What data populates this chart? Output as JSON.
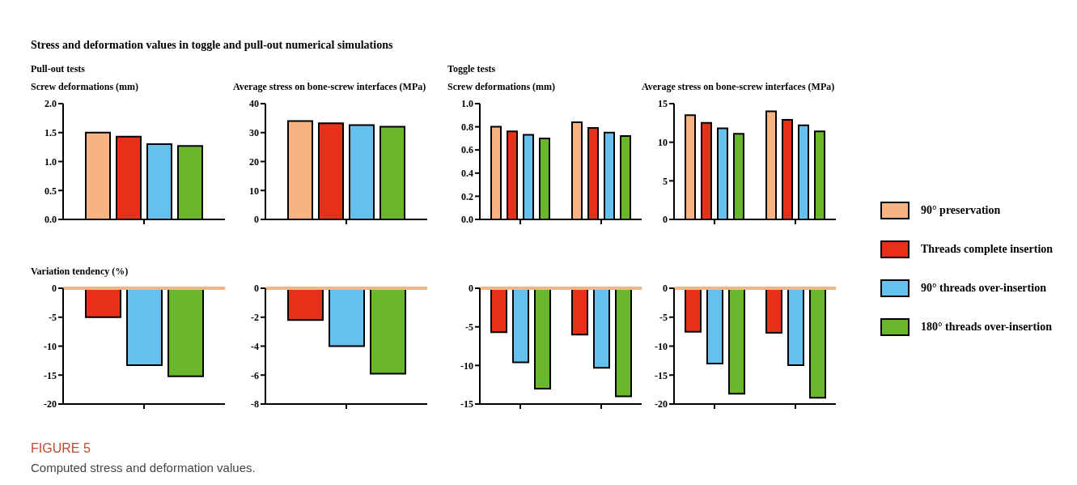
{
  "chart_data": [
    {
      "type": "bar",
      "annotations": [
        "Stress and deformation values in toggle and pull-out numerical simulations",
        "Pull-out tests"
      ],
      "title": "Screw deformations (mm)",
      "categories": [
        null
      ],
      "ylim": [
        0,
        2
      ],
      "yticks": [
        {
          "value": 0,
          "label": "0.0"
        },
        {
          "value": 0.5,
          "label": "0.5"
        },
        {
          "value": 1,
          "label": "1.0"
        },
        {
          "value": 1.5,
          "label": "1.5"
        },
        {
          "value": 2,
          "label": "2.0"
        }
      ],
      "legend": false,
      "series": [
        {
          "color": "#f5b482",
          "values": [
            1.5
          ]
        },
        {
          "color": "#e6301a",
          "values": [
            1.43
          ]
        },
        {
          "color": "#66c0ec",
          "values": [
            1.3
          ]
        },
        {
          "color": "#6ab72d",
          "values": [
            1.27
          ]
        }
      ]
    },
    {
      "type": "bar",
      "title": "Average stress on bone-screw interfaces (MPa)",
      "categories": [
        null
      ],
      "ylim": [
        0,
        40
      ],
      "yticks": [
        0,
        10,
        20,
        30,
        40
      ],
      "legend": false,
      "series": [
        {
          "color": "#f5b482",
          "values": [
            34
          ]
        },
        {
          "color": "#e6301a",
          "values": [
            33.2
          ]
        },
        {
          "color": "#66c0ec",
          "values": [
            32.6
          ]
        },
        {
          "color": "#6ab72d",
          "values": [
            32
          ]
        }
      ]
    },
    {
      "type": "bar",
      "annotations": [
        "Toggle tests"
      ],
      "title": "Screw deformations (mm)",
      "categories": [
        null,
        null
      ],
      "ylim": [
        0,
        1
      ],
      "yticks": [
        {
          "value": 0,
          "label": "0.0"
        },
        {
          "value": 0.2,
          "label": "0.2"
        },
        {
          "value": 0.4,
          "label": "0.4"
        },
        {
          "value": 0.6,
          "label": "0.6"
        },
        {
          "value": 0.8,
          "label": "0.8"
        },
        {
          "value": 1,
          "label": "1.0"
        }
      ],
      "legend": false,
      "series": [
        {
          "color": "#f5b482",
          "values": [
            0.8,
            0.84
          ]
        },
        {
          "color": "#e6301a",
          "values": [
            0.76,
            0.79
          ]
        },
        {
          "color": "#66c0ec",
          "values": [
            0.73,
            0.75
          ]
        },
        {
          "color": "#6ab72d",
          "values": [
            0.7,
            0.72
          ]
        }
      ]
    },
    {
      "type": "bar",
      "title": "Average stress on bone-screw interfaces (MPa)",
      "categories": [
        null,
        null
      ],
      "ylim": [
        0,
        15
      ],
      "yticks": [
        0,
        5,
        10,
        15
      ],
      "legend": "right",
      "series": [
        {
          "name": "90° preservation",
          "color": "#f5b482",
          "values": [
            13.5,
            14.0
          ]
        },
        {
          "name": "Threads complete insertion",
          "color": "#e6301a",
          "values": [
            12.5,
            12.9
          ]
        },
        {
          "name": "90° threads over-insertion",
          "color": "#66c0ec",
          "values": [
            11.8,
            12.2
          ]
        },
        {
          "name": "180° threads over-insertion",
          "color": "#6ab72d",
          "values": [
            11.1,
            11.4
          ]
        }
      ]
    },
    {
      "type": "bar",
      "title": "Variation tendency (%)",
      "annotations": [
        "FIGURE 5",
        "Computed stress and deformation values."
      ],
      "categories": [
        null
      ],
      "ylim": [
        -20,
        0
      ],
      "yticks": [
        -20,
        -15,
        -10,
        -5,
        0
      ],
      "legend": false,
      "ref_lines": [
        {
          "axis": "y",
          "value": 0,
          "color": "#f5b482"
        }
      ],
      "series": [
        {
          "color": "#e6301a",
          "values": [
            -5.0
          ]
        },
        {
          "color": "#66c0ec",
          "values": [
            -13.3
          ]
        },
        {
          "color": "#6ab72d",
          "values": [
            -15.2
          ]
        }
      ]
    },
    {
      "type": "bar",
      "categories": [
        null
      ],
      "ylim": [
        -8,
        0
      ],
      "yticks": [
        -8,
        -6,
        -4,
        -2,
        0
      ],
      "legend": false,
      "ref_lines": [
        {
          "axis": "y",
          "value": 0,
          "color": "#f5b482"
        }
      ],
      "series": [
        {
          "color": "#e6301a",
          "values": [
            -2.2
          ]
        },
        {
          "color": "#66c0ec",
          "values": [
            -4.0
          ]
        },
        {
          "color": "#6ab72d",
          "values": [
            -5.9
          ]
        }
      ]
    },
    {
      "type": "bar",
      "categories": [
        null,
        null
      ],
      "ylim": [
        -15,
        0
      ],
      "yticks": [
        -15,
        -10,
        -5,
        0
      ],
      "legend": false,
      "ref_lines": [
        {
          "axis": "y",
          "value": 0,
          "color": "#f5b482"
        }
      ],
      "series": [
        {
          "color": "#e6301a",
          "values": [
            -5.7,
            -6.0
          ]
        },
        {
          "color": "#66c0ec",
          "values": [
            -9.6,
            -10.3
          ]
        },
        {
          "color": "#6ab72d",
          "values": [
            -13.0,
            -14.0
          ]
        }
      ]
    },
    {
      "type": "bar",
      "categories": [
        null,
        null
      ],
      "ylim": [
        -20,
        0
      ],
      "yticks": [
        -20,
        -15,
        -10,
        -5,
        0
      ],
      "legend": false,
      "ref_lines": [
        {
          "axis": "y",
          "value": 0,
          "color": "#f5b482"
        }
      ],
      "series": [
        {
          "color": "#e6301a",
          "values": [
            -7.5,
            -7.7
          ]
        },
        {
          "color": "#66c0ec",
          "values": [
            -13.0,
            -13.3
          ]
        },
        {
          "color": "#6ab72d",
          "values": [
            -18.2,
            -18.9
          ]
        }
      ]
    }
  ]
}
